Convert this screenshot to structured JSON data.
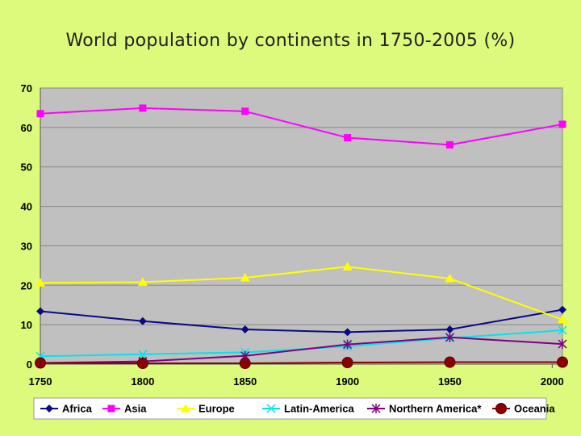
{
  "chart_data": {
    "type": "line",
    "title": "World population by continents in 1750-2005 (%)",
    "xlabel": "",
    "ylabel": "",
    "x": [
      1750,
      1800,
      1850,
      1900,
      1950,
      2005
    ],
    "x_ticks": [
      1750,
      1800,
      1850,
      1900,
      1950,
      2000
    ],
    "y_ticks": [
      0,
      10,
      20,
      30,
      40,
      50,
      60,
      70
    ],
    "xlim": [
      1750,
      2005
    ],
    "ylim": [
      0,
      70
    ],
    "grid": "horizontal",
    "legend_position": "bottom",
    "series": [
      {
        "name": "Africa",
        "color": "#0a0a82",
        "marker": "diamond",
        "values": [
          13.4,
          10.9,
          8.8,
          8.1,
          8.8,
          13.8
        ]
      },
      {
        "name": "Asia",
        "color": "#ff00ff",
        "marker": "square",
        "values": [
          63.5,
          64.9,
          64.1,
          57.4,
          55.6,
          60.8
        ]
      },
      {
        "name": "Europe",
        "color": "#ffff00",
        "marker": "triangle",
        "values": [
          20.6,
          20.8,
          21.9,
          24.7,
          21.7,
          11.3
        ]
      },
      {
        "name": "Latin-America",
        "color": "#00e5ee",
        "marker": "x",
        "values": [
          2.0,
          2.5,
          3.0,
          4.5,
          6.6,
          8.6
        ]
      },
      {
        "name": "Northern America*",
        "color": "#800080",
        "marker": "star",
        "values": [
          0.3,
          0.7,
          2.1,
          5.0,
          6.8,
          5.1
        ]
      },
      {
        "name": "Oceania",
        "color": "#8b0000",
        "marker": "circle",
        "values": [
          0.3,
          0.2,
          0.2,
          0.4,
          0.5,
          0.5
        ]
      }
    ]
  }
}
